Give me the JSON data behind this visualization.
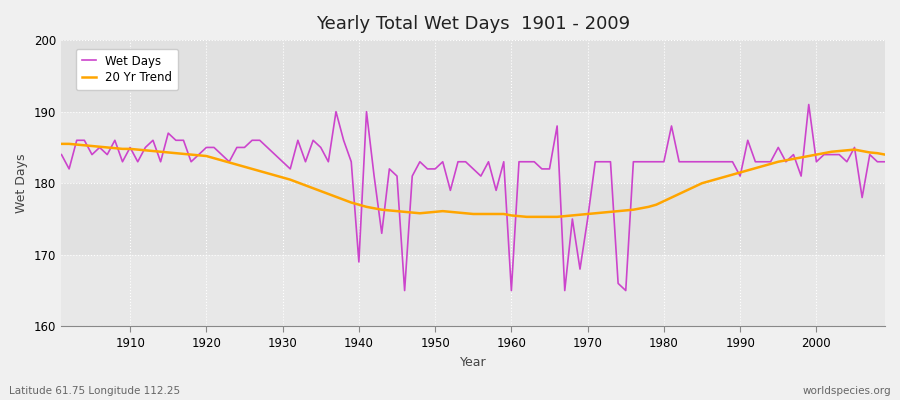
{
  "title": "Yearly Total Wet Days  1901 - 2009",
  "xlabel": "Year",
  "ylabel": "Wet Days",
  "footnote_left": "Latitude 61.75 Longitude 112.25",
  "footnote_right": "worldspecies.org",
  "ylim": [
    160,
    200
  ],
  "xlim": [
    1901,
    2009
  ],
  "yticks": [
    160,
    170,
    180,
    190,
    200
  ],
  "xticks": [
    1910,
    1920,
    1930,
    1940,
    1950,
    1960,
    1970,
    1980,
    1990,
    2000
  ],
  "line_color": "#CC44CC",
  "trend_color": "#FFA500",
  "bg_color": "#F0F0F0",
  "plot_bg": "#EBEBEB",
  "legend_labels": [
    "Wet Days",
    "20 Yr Trend"
  ],
  "years": [
    1901,
    1902,
    1903,
    1904,
    1905,
    1906,
    1907,
    1908,
    1909,
    1910,
    1911,
    1912,
    1913,
    1914,
    1915,
    1916,
    1917,
    1918,
    1919,
    1920,
    1921,
    1922,
    1923,
    1924,
    1925,
    1926,
    1927,
    1928,
    1929,
    1930,
    1931,
    1932,
    1933,
    1934,
    1935,
    1936,
    1937,
    1938,
    1939,
    1940,
    1941,
    1942,
    1943,
    1944,
    1945,
    1946,
    1947,
    1948,
    1949,
    1950,
    1951,
    1952,
    1953,
    1954,
    1955,
    1956,
    1957,
    1958,
    1959,
    1960,
    1961,
    1962,
    1963,
    1964,
    1965,
    1966,
    1967,
    1968,
    1969,
    1970,
    1971,
    1972,
    1973,
    1974,
    1975,
    1976,
    1977,
    1978,
    1979,
    1980,
    1981,
    1982,
    1983,
    1984,
    1985,
    1986,
    1987,
    1988,
    1989,
    1990,
    1991,
    1992,
    1993,
    1994,
    1995,
    1996,
    1997,
    1998,
    1999,
    2000,
    2001,
    2002,
    2003,
    2004,
    2005,
    2006,
    2007,
    2008,
    2009
  ],
  "wet_days": [
    184,
    182,
    186,
    186,
    184,
    185,
    184,
    186,
    183,
    185,
    183,
    185,
    186,
    183,
    187,
    186,
    186,
    183,
    184,
    185,
    185,
    184,
    183,
    185,
    185,
    186,
    186,
    185,
    184,
    183,
    182,
    186,
    183,
    186,
    185,
    183,
    190,
    186,
    183,
    169,
    190,
    181,
    173,
    182,
    181,
    165,
    181,
    183,
    182,
    182,
    183,
    179,
    183,
    183,
    182,
    181,
    183,
    179,
    183,
    165,
    183,
    183,
    183,
    182,
    182,
    188,
    165,
    175,
    168,
    175,
    183,
    183,
    183,
    166,
    165,
    183,
    183,
    183,
    183,
    183,
    188,
    183,
    183,
    183,
    183,
    183,
    183,
    183,
    183,
    181,
    186,
    183,
    183,
    183,
    185,
    183,
    184,
    181,
    191,
    183,
    184,
    184,
    184,
    183,
    185,
    178,
    184,
    183,
    183
  ],
  "trend": [
    185.5,
    185.5,
    185.4,
    185.3,
    185.2,
    185.1,
    185.0,
    184.9,
    184.8,
    184.8,
    184.7,
    184.6,
    184.5,
    184.4,
    184.3,
    184.2,
    184.1,
    184.0,
    183.9,
    183.8,
    183.5,
    183.2,
    182.9,
    182.6,
    182.3,
    182.0,
    181.7,
    181.4,
    181.1,
    180.8,
    180.5,
    180.1,
    179.7,
    179.3,
    178.9,
    178.5,
    178.1,
    177.7,
    177.3,
    177.0,
    176.7,
    176.5,
    176.3,
    176.2,
    176.1,
    176.0,
    175.9,
    175.8,
    175.9,
    176.0,
    176.1,
    176.0,
    175.9,
    175.8,
    175.7,
    175.7,
    175.7,
    175.7,
    175.7,
    175.5,
    175.4,
    175.3,
    175.3,
    175.3,
    175.3,
    175.3,
    175.4,
    175.5,
    175.6,
    175.7,
    175.8,
    175.9,
    176.0,
    176.1,
    176.2,
    176.3,
    176.5,
    176.7,
    177.0,
    177.5,
    178.0,
    178.5,
    179.0,
    179.5,
    180.0,
    180.3,
    180.6,
    180.9,
    181.2,
    181.5,
    181.8,
    182.1,
    182.4,
    182.7,
    183.0,
    183.2,
    183.4,
    183.6,
    183.8,
    184.0,
    184.2,
    184.4,
    184.5,
    184.6,
    184.7,
    184.5,
    184.3,
    184.2,
    184.0
  ]
}
